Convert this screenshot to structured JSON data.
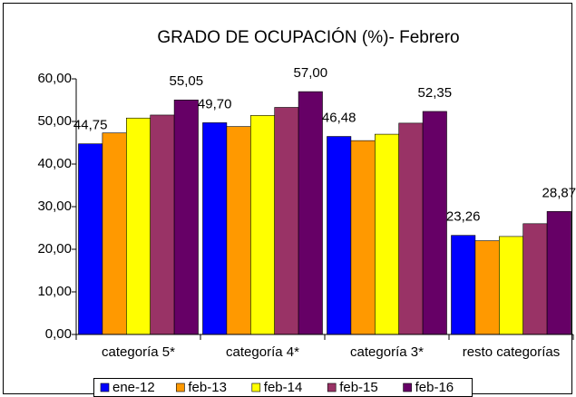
{
  "chart_data": {
    "type": "bar",
    "title": "GRADO DE OCUPACIÓN (%)- Febrero",
    "categories": [
      "categoría 5*",
      "categoría 4*",
      "categoría 3*",
      "resto categorías"
    ],
    "series": [
      {
        "name": "ene-12",
        "color": "#0000ff",
        "values": [
          44.75,
          49.7,
          46.48,
          23.26
        ],
        "value_labels": [
          "44,75",
          "49,70",
          "46,48",
          "23,26"
        ]
      },
      {
        "name": "feb-13",
        "color": "#ff9900",
        "values": [
          47.3,
          48.8,
          45.5,
          22.0
        ]
      },
      {
        "name": "feb-14",
        "color": "#ffff00",
        "values": [
          50.8,
          51.4,
          47.0,
          23.0
        ]
      },
      {
        "name": "feb-15",
        "color": "#993366",
        "values": [
          51.5,
          53.3,
          49.6,
          26.0
        ]
      },
      {
        "name": "feb-16",
        "color": "#660066",
        "values": [
          55.05,
          57.0,
          52.35,
          28.87
        ],
        "value_labels": [
          "55,05",
          "57,00",
          "52,35",
          "28,87"
        ]
      }
    ],
    "ylim": [
      0,
      60
    ],
    "yticks": [
      {
        "value": 0,
        "label": "0,00"
      },
      {
        "value": 10,
        "label": "10,00"
      },
      {
        "value": 20,
        "label": "20,00"
      },
      {
        "value": 30,
        "label": "30,00"
      },
      {
        "value": 40,
        "label": "40,00"
      },
      {
        "value": 50,
        "label": "50,00"
      },
      {
        "value": 60,
        "label": "60,00"
      }
    ],
    "grid": false,
    "legend": "bottom"
  }
}
